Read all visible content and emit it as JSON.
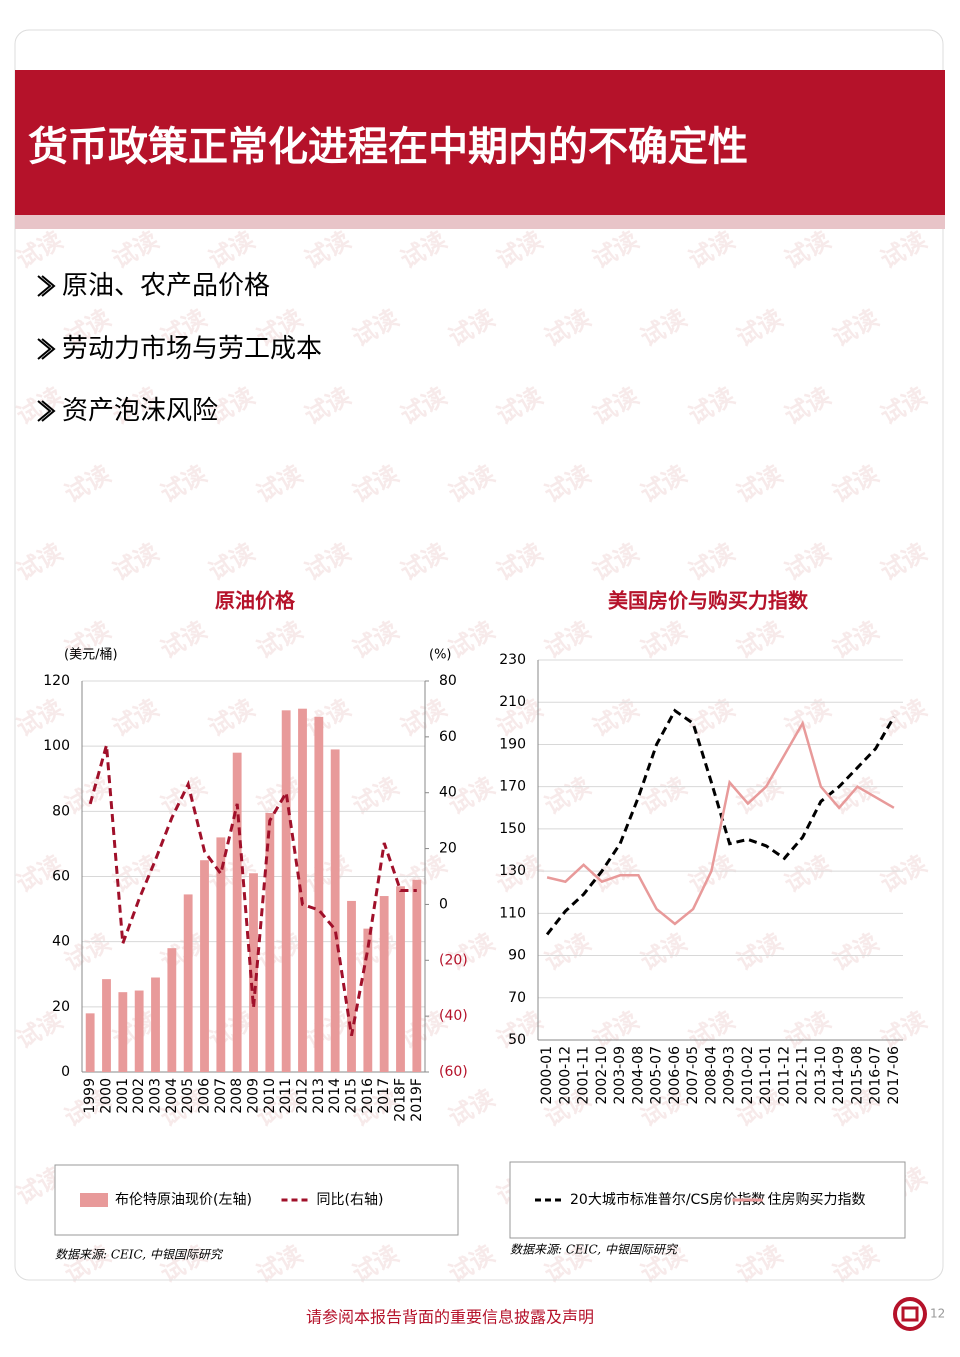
{
  "header": {
    "title": "货币政策正常化进程在中期内的不确定性"
  },
  "bullets": [
    "原油、农产品价格",
    "劳动力市场与劳工成本",
    "资产泡沫风险"
  ],
  "watermark": "试读",
  "chart_data": [
    {
      "type": "bar",
      "title": "原油价格",
      "y_label": "(美元/桶)",
      "y2_label": "(%)",
      "categories": [
        "1999",
        "2000",
        "2001",
        "2002",
        "2003",
        "2004",
        "2005",
        "2006",
        "2007",
        "2008",
        "2009",
        "2010",
        "2011",
        "2012",
        "2013",
        "2014",
        "2015",
        "2016",
        "2017",
        "2018F",
        "2019F"
      ],
      "series": [
        {
          "name": "布伦特原油现价(左轴)",
          "color": "#e89a9a",
          "values": [
            18,
            28.5,
            24.5,
            25,
            29,
            38,
            54.5,
            65,
            72,
            98,
            61,
            79.5,
            111,
            111.5,
            109,
            99,
            52.5,
            44,
            54,
            57,
            59
          ]
        },
        {
          "name": "同比(右轴)",
          "type": "line",
          "style": "dashed",
          "axis": "y2",
          "color": "#a0102a",
          "values": [
            36,
            57,
            -14,
            2,
            16,
            31,
            43,
            19,
            11,
            36,
            -37,
            30,
            40,
            0,
            -2,
            -9,
            -47,
            -16,
            22,
            5,
            5
          ]
        }
      ],
      "ylim": [
        0,
        120
      ],
      "yticks": [
        0,
        20,
        40,
        60,
        80,
        100,
        120
      ],
      "y2lim": [
        -60,
        80
      ],
      "y2ticks": [
        {
          "value": -60,
          "label": "(60)"
        },
        {
          "value": -40,
          "label": "(40)"
        },
        {
          "value": -20,
          "label": "(20)"
        },
        0,
        20,
        40,
        60,
        80
      ],
      "grid": true,
      "source": "数据来源: CEIC, 中银国际研究"
    },
    {
      "type": "line",
      "title": "美国房价与购买力指数",
      "categories": [
        "2000-01",
        "2000-12",
        "2001-11",
        "2002-10",
        "2003-09",
        "2004-08",
        "2005-07",
        "2006-06",
        "2007-05",
        "2008-04",
        "2009-03",
        "2010-02",
        "2011-01",
        "2011-12",
        "2012-11",
        "2013-10",
        "2014-09",
        "2015-08",
        "2016-07",
        "2017-06"
      ],
      "series": [
        {
          "name": "20大城市标准普尔/CS房价指数",
          "color": "#000000",
          "style": "dashed",
          "values": [
            100,
            111,
            119,
            130,
            143,
            165,
            190,
            206,
            200,
            172,
            143,
            145,
            142,
            136,
            146,
            163,
            170,
            179,
            188,
            203
          ]
        },
        {
          "name": "住房购买力指数",
          "color": "#e89a9a",
          "style": "solid",
          "values": [
            127,
            125,
            133,
            125,
            128,
            128,
            112,
            105,
            112,
            130,
            172,
            162,
            170,
            185,
            200,
            170,
            160,
            170,
            165,
            160
          ]
        }
      ],
      "ylim": [
        50,
        230
      ],
      "yticks": [
        50,
        70,
        90,
        110,
        130,
        150,
        170,
        190,
        210,
        230
      ],
      "grid": true,
      "source": "数据来源: CEIC, 中银国际研究"
    }
  ],
  "footer": {
    "disclaimer": "请参阅本报告背面的重要信息披露及声明",
    "page": 12
  }
}
